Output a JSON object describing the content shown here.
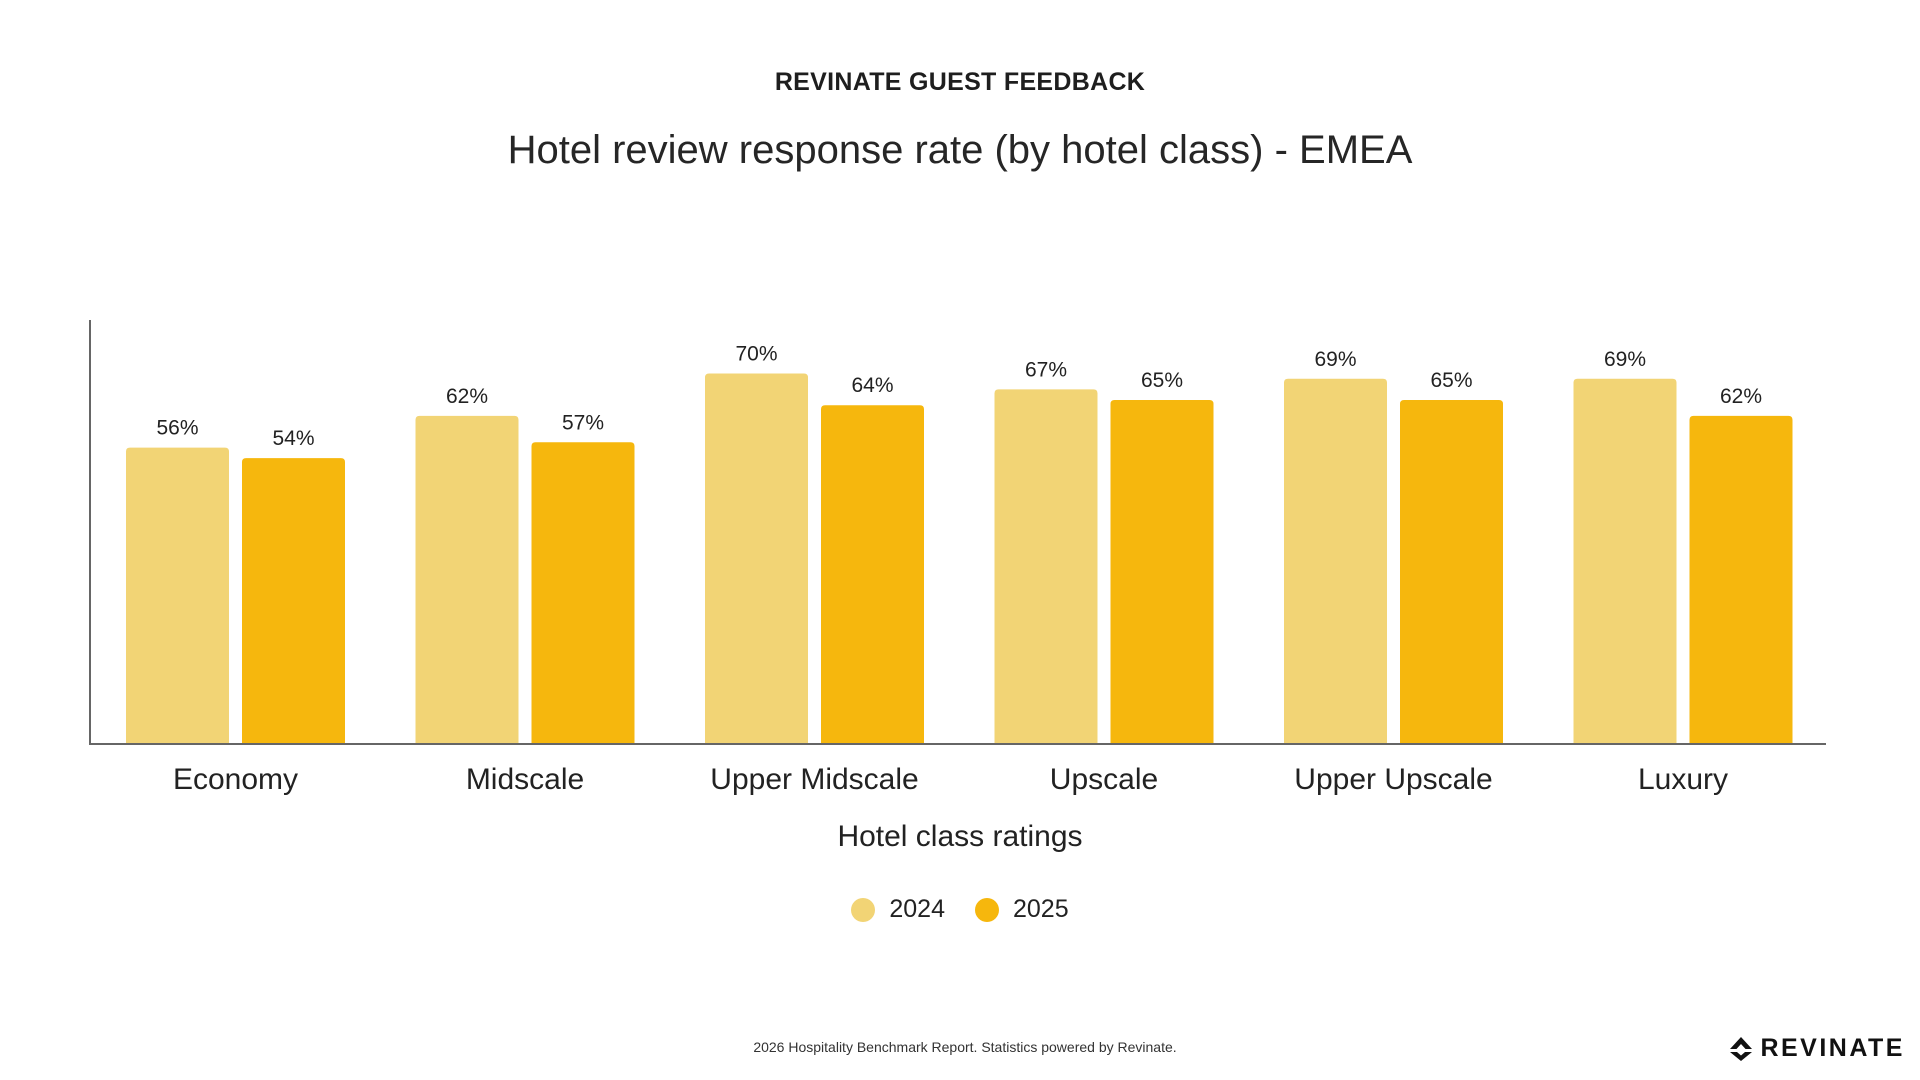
{
  "header": {
    "kicker": "REVINATE GUEST FEEDBACK",
    "title": "Hotel review response rate (by hotel class) - EMEA"
  },
  "chart_data": {
    "type": "bar",
    "title": "Hotel review response rate (by hotel class) - EMEA",
    "xlabel": "Hotel class ratings",
    "ylabel": "",
    "categories": [
      "Economy",
      "Midscale",
      "Upper Midscale",
      "Upscale",
      "Upper Upscale",
      "Luxury"
    ],
    "series": [
      {
        "name": "2024",
        "values": [
          56,
          62,
          70,
          67,
          69,
          69
        ],
        "labels": [
          "56%",
          "62%",
          "70%",
          "67%",
          "69%",
          "69%"
        ],
        "color": "#F2D475"
      },
      {
        "name": "2025",
        "values": [
          54,
          57,
          64,
          65,
          65,
          62
        ],
        "labels": [
          "54%",
          "57%",
          "64%",
          "65%",
          "65%",
          "62%"
        ],
        "color": "#F6B70D"
      }
    ],
    "ylim": [
      0,
      80
    ],
    "grid": false,
    "y_axis_ticks_shown": false,
    "legend_position": "bottom-center"
  },
  "footer": {
    "note": "2026 Hospitality Benchmark Report. Statistics powered by Revinate.",
    "brand": "REVINATE",
    "brand_icon": "revinate-logo-icon"
  }
}
